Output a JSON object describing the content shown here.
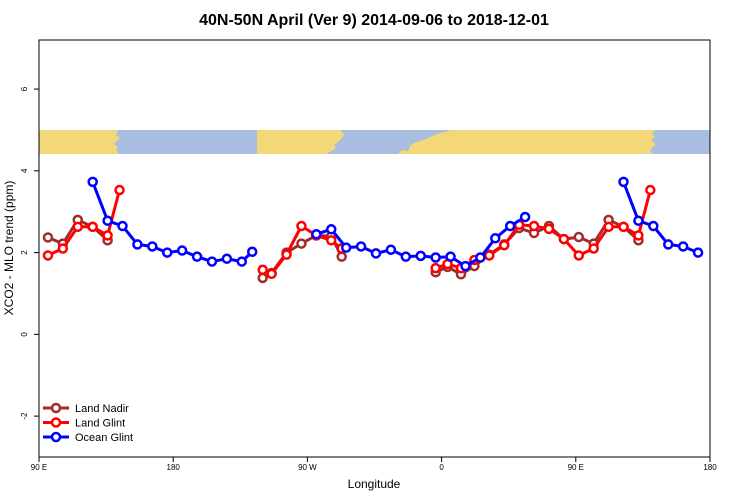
{
  "chart_data": {
    "type": "line",
    "title": "40N-50N April (Ver 9)   2014-09-06 to 2018-12-01",
    "xlabel": "Longitude",
    "ylabel": "XCO2 - MLO trend (ppm)",
    "xlim": [
      90,
      540
    ],
    "ylim": [
      -3,
      7.2
    ],
    "x_ticks": [
      {
        "value": 90,
        "label": "90 E"
      },
      {
        "value": 180,
        "label": "180"
      },
      {
        "value": 270,
        "label": "90 W"
      },
      {
        "value": 360,
        "label": "0"
      },
      {
        "value": 450,
        "label": "90 E"
      },
      {
        "value": 540,
        "label": "180"
      }
    ],
    "y_ticks": [
      {
        "value": -2,
        "label": "-2"
      },
      {
        "value": 0,
        "label": "0"
      },
      {
        "value": 2,
        "label": "2"
      },
      {
        "value": 4,
        "label": "4"
      },
      {
        "value": 6,
        "label": "6"
      }
    ],
    "legend_position": "bottom-left",
    "series": [
      {
        "name": "Land Nadir",
        "color": "#a52a2a",
        "segments": [
          [
            [
              96,
              2.37
            ],
            [
              106,
              2.22
            ],
            [
              116,
              2.8
            ],
            [
              126,
              2.63
            ],
            [
              136,
              2.3
            ]
          ],
          [
            [
              240,
              1.38
            ],
            [
              246,
              1.5
            ],
            [
              256,
              2.0
            ],
            [
              266,
              2.22
            ],
            [
              276,
              2.42
            ],
            [
              286,
              2.4
            ],
            [
              293,
              1.9
            ]
          ],
          [
            [
              356,
              1.52
            ],
            [
              364,
              1.65
            ],
            [
              373,
              1.47
            ],
            [
              382,
              1.67
            ],
            [
              392,
              1.95
            ],
            [
              402,
              2.2
            ],
            [
              412,
              2.6
            ],
            [
              422,
              2.48
            ],
            [
              432,
              2.65
            ],
            [
              442,
              2.33
            ],
            [
              452,
              2.38
            ],
            [
              462,
              2.22
            ],
            [
              472,
              2.8
            ],
            [
              482,
              2.63
            ],
            [
              492,
              2.3
            ]
          ]
        ]
      },
      {
        "name": "Land Glint",
        "color": "#ff0000",
        "segments": [
          [
            [
              96,
              1.93
            ],
            [
              106,
              2.1
            ],
            [
              116,
              2.63
            ],
            [
              126,
              2.63
            ],
            [
              136,
              2.42
            ],
            [
              144,
              3.53
            ]
          ],
          [
            [
              240,
              1.58
            ],
            [
              246,
              1.48
            ],
            [
              256,
              1.95
            ],
            [
              266,
              2.65
            ],
            [
              276,
              2.42
            ],
            [
              286,
              2.3
            ],
            [
              293,
              2.1
            ]
          ],
          [
            [
              356,
              1.62
            ],
            [
              364,
              1.72
            ],
            [
              373,
              1.62
            ],
            [
              382,
              1.82
            ],
            [
              392,
              1.93
            ],
            [
              402,
              2.18
            ],
            [
              412,
              2.68
            ],
            [
              422,
              2.65
            ],
            [
              432,
              2.58
            ],
            [
              442,
              2.33
            ],
            [
              452,
              1.93
            ],
            [
              462,
              2.1
            ],
            [
              472,
              2.63
            ],
            [
              482,
              2.63
            ],
            [
              492,
              2.42
            ],
            [
              500,
              3.53
            ]
          ]
        ]
      },
      {
        "name": "Ocean Glint",
        "color": "#0000ff",
        "segments": [
          [
            [
              126,
              3.73
            ],
            [
              136,
              2.78
            ],
            [
              146,
              2.65
            ],
            [
              156,
              2.2
            ],
            [
              166,
              2.15
            ],
            [
              176,
              2.0
            ],
            [
              186,
              2.05
            ],
            [
              196,
              1.9
            ],
            [
              206,
              1.78
            ],
            [
              216,
              1.85
            ],
            [
              226,
              1.78
            ],
            [
              233,
              2.02
            ]
          ],
          [
            [
              276,
              2.45
            ],
            [
              286,
              2.57
            ],
            [
              296,
              2.12
            ],
            [
              306,
              2.15
            ],
            [
              316,
              1.98
            ],
            [
              326,
              2.07
            ],
            [
              336,
              1.9
            ],
            [
              346,
              1.92
            ],
            [
              356,
              1.88
            ],
            [
              366,
              1.9
            ],
            [
              376,
              1.67
            ],
            [
              386,
              1.88
            ],
            [
              396,
              2.35
            ],
            [
              406,
              2.65
            ],
            [
              416,
              2.87
            ]
          ],
          [
            [
              482,
              3.73
            ],
            [
              492,
              2.78
            ],
            [
              502,
              2.65
            ],
            [
              512,
              2.2
            ],
            [
              522,
              2.15
            ],
            [
              532,
              2.0
            ]
          ]
        ]
      }
    ]
  }
}
